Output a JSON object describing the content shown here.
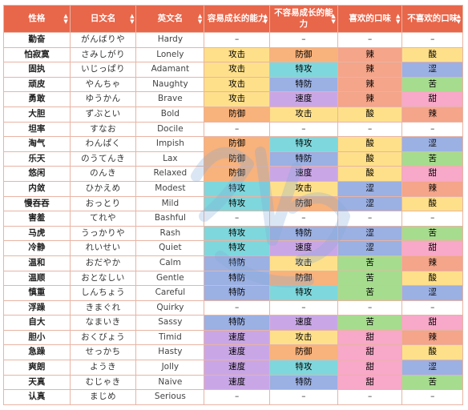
{
  "headers": [
    "性格",
    "日文名",
    "英文名",
    "容易成长的能力",
    "不容易成长的能力",
    "喜欢的口味",
    "不喜欢的口味"
  ],
  "rows": [
    {
      "nature": "勤奋",
      "jp": "がんばりや",
      "en": "Hardy",
      "up": "–",
      "down": "–",
      "like": "–",
      "dislike": "–"
    },
    {
      "nature": "怕寂寞",
      "jp": "さみしがり",
      "en": "Lonely",
      "up": "攻击",
      "down": "防御",
      "like": "辣",
      "dislike": "酸"
    },
    {
      "nature": "固执",
      "jp": "いじっぱり",
      "en": "Adamant",
      "up": "攻击",
      "down": "特攻",
      "like": "辣",
      "dislike": "涩"
    },
    {
      "nature": "顽皮",
      "jp": "やんちゃ",
      "en": "Naughty",
      "up": "攻击",
      "down": "特防",
      "like": "辣",
      "dislike": "苦"
    },
    {
      "nature": "勇敢",
      "jp": "ゆうかん",
      "en": "Brave",
      "up": "攻击",
      "down": "速度",
      "like": "辣",
      "dislike": "甜"
    },
    {
      "nature": "大胆",
      "jp": "ずぶとい",
      "en": "Bold",
      "up": "防御",
      "down": "攻击",
      "like": "酸",
      "dislike": "辣"
    },
    {
      "nature": "坦率",
      "jp": "すなお",
      "en": "Docile",
      "up": "–",
      "down": "–",
      "like": "–",
      "dislike": "–"
    },
    {
      "nature": "淘气",
      "jp": "わんぱく",
      "en": "Impish",
      "up": "防御",
      "down": "特攻",
      "like": "酸",
      "dislike": "涩"
    },
    {
      "nature": "乐天",
      "jp": "のうてんき",
      "en": "Lax",
      "up": "防御",
      "down": "特防",
      "like": "酸",
      "dislike": "苦"
    },
    {
      "nature": "悠闲",
      "jp": "のんき",
      "en": "Relaxed",
      "up": "防御",
      "down": "速度",
      "like": "酸",
      "dislike": "甜"
    },
    {
      "nature": "内敛",
      "jp": "ひかえめ",
      "en": "Modest",
      "up": "特攻",
      "down": "攻击",
      "like": "涩",
      "dislike": "辣"
    },
    {
      "nature": "慢吞吞",
      "jp": "おっとり",
      "en": "Mild",
      "up": "特攻",
      "down": "防御",
      "like": "涩",
      "dislike": "酸"
    },
    {
      "nature": "害羞",
      "jp": "てれや",
      "en": "Bashful",
      "up": "–",
      "down": "–",
      "like": "–",
      "dislike": "–"
    },
    {
      "nature": "马虎",
      "jp": "うっかりや",
      "en": "Rash",
      "up": "特攻",
      "down": "特防",
      "like": "涩",
      "dislike": "苦"
    },
    {
      "nature": "冷静",
      "jp": "れいせい",
      "en": "Quiet",
      "up": "特攻",
      "down": "速度",
      "like": "涩",
      "dislike": "甜"
    },
    {
      "nature": "温和",
      "jp": "おだやか",
      "en": "Calm",
      "up": "特防",
      "down": "攻击",
      "like": "苦",
      "dislike": "辣"
    },
    {
      "nature": "温顺",
      "jp": "おとなしい",
      "en": "Gentle",
      "up": "特防",
      "down": "防御",
      "like": "苦",
      "dislike": "酸"
    },
    {
      "nature": "慎重",
      "jp": "しんちょう",
      "en": "Careful",
      "up": "特防",
      "down": "特攻",
      "like": "苦",
      "dislike": "涩"
    },
    {
      "nature": "浮躁",
      "jp": "きまぐれ",
      "en": "Quirky",
      "up": "–",
      "down": "–",
      "like": "–",
      "dislike": "–"
    },
    {
      "nature": "自大",
      "jp": "なまいき",
      "en": "Sassy",
      "up": "特防",
      "down": "速度",
      "like": "苦",
      "dislike": "甜"
    },
    {
      "nature": "胆小",
      "jp": "おくびょう",
      "en": "Timid",
      "up": "速度",
      "down": "攻击",
      "like": "甜",
      "dislike": "辣"
    },
    {
      "nature": "急躁",
      "jp": "せっかち",
      "en": "Hasty",
      "up": "速度",
      "down": "防御",
      "like": "甜",
      "dislike": "酸"
    },
    {
      "nature": "爽朗",
      "jp": "ようき",
      "en": "Jolly",
      "up": "速度",
      "down": "特攻",
      "like": "甜",
      "dislike": "涩"
    },
    {
      "nature": "天真",
      "jp": "むじゃき",
      "en": "Naive",
      "up": "速度",
      "down": "特防",
      "like": "甜",
      "dislike": "苦"
    },
    {
      "nature": "认真",
      "jp": "まじめ",
      "en": "Serious",
      "up": "–",
      "down": "–",
      "like": "–",
      "dislike": "–"
    }
  ],
  "colors": {
    "header": "#e8664a",
    "攻击": "#ffe08a",
    "防御": "#f8b27b",
    "特攻": "#7ed7dc",
    "特防": "#9bb0e3",
    "速度": "#c9a7e6",
    "辣": "#f4a58a",
    "酸": "#ffe08a",
    "涩": "#9bb0e3",
    "苦": "#a6dc8e",
    "甜": "#f8a8c8"
  },
  "icons": {
    "sort": "sort-arrows-icon",
    "watermark": "watermark-logo-icon"
  }
}
